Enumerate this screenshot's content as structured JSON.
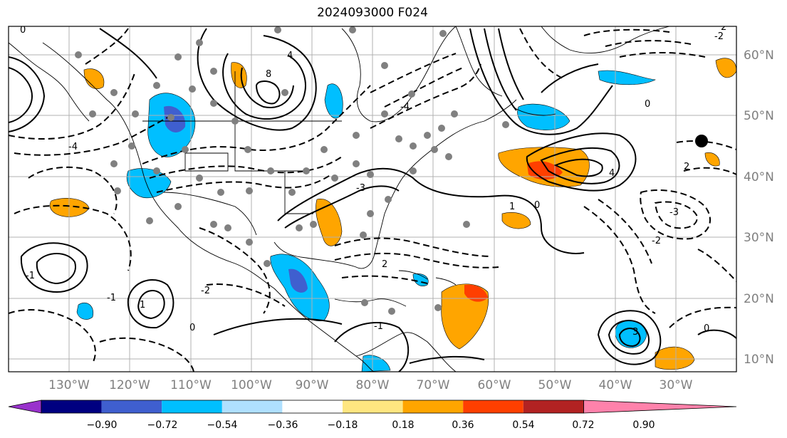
{
  "map": {
    "title": "2024093000 F024",
    "lon_ticks": [
      "130°W",
      "120°W",
      "110°W",
      "100°W",
      "90°W",
      "80°W",
      "70°W",
      "60°W",
      "50°W",
      "40°W",
      "30°W"
    ],
    "lat_ticks": [
      "60°N",
      "50°N",
      "40°N",
      "30°N",
      "20°N",
      "10°N"
    ],
    "contour_labels": [
      "0",
      "8",
      "-4",
      "4",
      "-2",
      "2",
      "-1",
      "1",
      "-3",
      "3",
      "-4",
      "0",
      "1",
      "-2",
      "2",
      "-1",
      "0",
      "4",
      "-3",
      "2",
      "-2",
      "0",
      "-1",
      "0"
    ],
    "station_dot_color": "#808080",
    "coastline_color": "#000000"
  },
  "colorbar": {
    "colors": [
      "#9932cc",
      "#000080",
      "#3f5fcf",
      "#00bfff",
      "#afe0ff",
      "#ffffff",
      "#ffe680",
      "#ffa500",
      "#ff3f00",
      "#b22222",
      "#ff82ab"
    ],
    "tick_labels": [
      "−0.90",
      "−0.72",
      "−0.54",
      "−0.36",
      "−0.18",
      "0.18",
      "0.36",
      "0.54",
      "0.72",
      "0.90"
    ]
  }
}
